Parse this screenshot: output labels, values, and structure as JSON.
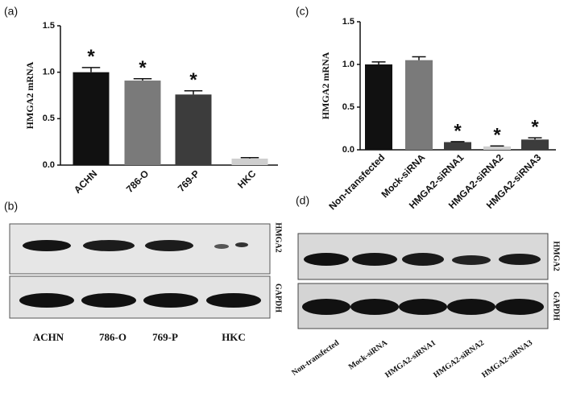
{
  "chart_data": [
    {
      "type": "bar",
      "panel": "(a)",
      "ylabel": "HMGA2  mRNA",
      "categories": [
        "ACHN",
        "786-O",
        "769-P",
        "HKC"
      ],
      "values": [
        1.0,
        0.91,
        0.76,
        0.07
      ],
      "errors": [
        0.05,
        0.02,
        0.04,
        0.01
      ],
      "colors": [
        "#111111",
        "#7a7a7a",
        "#3c3c3c",
        "#cfcfcf"
      ],
      "markers": [
        "*",
        "*",
        "*",
        null
      ],
      "ylim": [
        0,
        1.5
      ],
      "yticks": [
        {
          "value": 0,
          "label": "0.0"
        },
        {
          "value": 0.5,
          "label": "0.5"
        },
        {
          "value": 1,
          "label": "1.0"
        },
        {
          "value": 1.5,
          "label": "1.5"
        }
      ]
    },
    {
      "type": "bar",
      "panel": "(c)",
      "ylabel": "HMGA2  mRNA",
      "categories": [
        "Non-transfected",
        "Mock-siRNA",
        "HMGA2-siRNA1",
        "HMGA2-siRNA2",
        "HMGA2-siRNA3"
      ],
      "values": [
        1.0,
        1.05,
        0.09,
        0.04,
        0.12
      ],
      "errors": [
        0.03,
        0.04,
        0.005,
        0.005,
        0.02
      ],
      "colors": [
        "#111111",
        "#7a7a7a",
        "#3c3c3c",
        "#cfcfcf",
        "#3c3c3c"
      ],
      "markers": [
        null,
        null,
        "*",
        "*",
        "*"
      ],
      "ylim": [
        0,
        1.5
      ],
      "yticks": [
        {
          "value": 0,
          "label": "0.0"
        },
        {
          "value": 0.5,
          "label": "0.5"
        },
        {
          "value": 1,
          "label": "1.0"
        },
        {
          "value": 1.5,
          "label": "1.5"
        }
      ]
    }
  ],
  "blots": [
    {
      "panel": "(b)",
      "rows": [
        "HMGA2",
        "GAPDH"
      ],
      "lanes": [
        "ACHN",
        "786-O",
        "769-P",
        "HKC"
      ]
    },
    {
      "panel": "(d)",
      "rows": [
        "HMGA2",
        "GAPDH"
      ],
      "lanes": [
        "Non-transfected",
        "Mock-siRNA",
        "HMGA2-siRNA1",
        "HMGA2-siRNA2",
        "HMGA2-siRNA3"
      ]
    }
  ]
}
